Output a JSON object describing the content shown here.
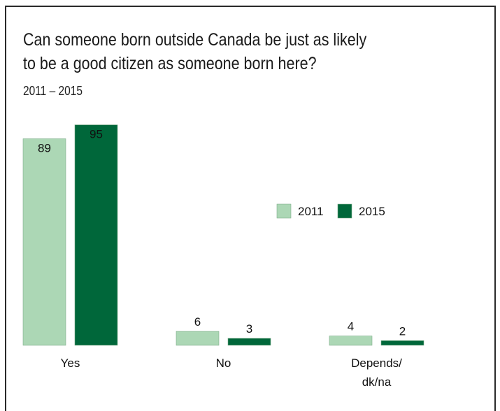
{
  "chart_data": {
    "type": "bar",
    "title_lines": [
      "Can someone born outside Canada be just as likely",
      "to be a good citizen as someone born here?"
    ],
    "subtitle": "2011 – 2015",
    "categories": [
      [
        "Yes"
      ],
      [
        "No"
      ],
      [
        "Depends/",
        "dk/na"
      ]
    ],
    "series": [
      {
        "name": "2011",
        "color": "#acd7b5",
        "values": [
          89,
          6,
          4
        ]
      },
      {
        "name": "2015",
        "color": "#00673a",
        "values": [
          95,
          3,
          2
        ]
      }
    ],
    "ylim": [
      0,
      100
    ],
    "grid": false,
    "legend_position": "center-right"
  }
}
